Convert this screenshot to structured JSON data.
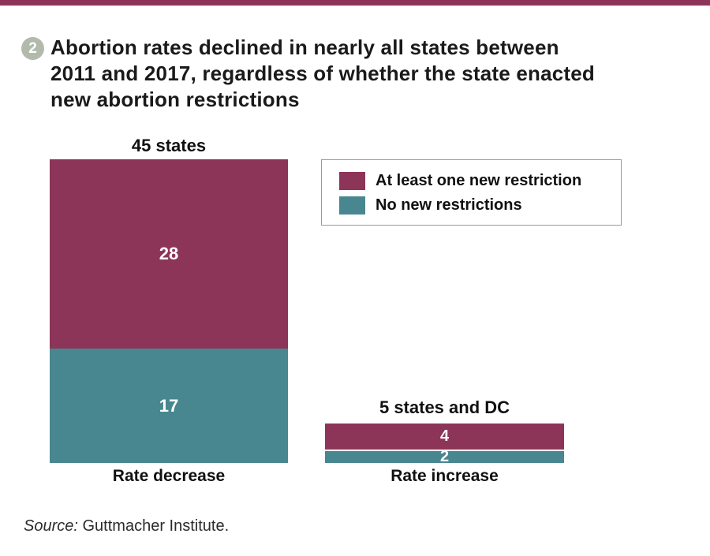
{
  "page": {
    "badge_number": "2",
    "title": "Abortion rates declined in nearly all states between\n2011 and 2017, regardless of whether the state enacted\nnew abortion restrictions",
    "source_prefix": "Source:",
    "source_text": " Guttmacher Institute."
  },
  "colors": {
    "restriction_maroon": "#8D3559",
    "no_restriction_teal": "#48878F",
    "badge_sage": "#B2BAAC",
    "top_rule": "#8D3559",
    "legend_border": "#9B9B9B",
    "text_dark": "#1A1A1A"
  },
  "legend": {
    "items": [
      {
        "label": "At least one new restriction",
        "color": "#8D3559"
      },
      {
        "label": "No new restrictions",
        "color": "#48878F"
      }
    ]
  },
  "chart_data": {
    "type": "bar",
    "stacked": true,
    "orientation": "vertical",
    "categories": [
      "Rate decrease",
      "Rate increase"
    ],
    "category_totals": [
      "45 states",
      "5 states and DC"
    ],
    "series": [
      {
        "name": "At least one new restriction",
        "color": "#8D3559",
        "values": [
          28,
          4
        ]
      },
      {
        "name": "No new restrictions",
        "color": "#48878F",
        "values": [
          17,
          2
        ]
      }
    ],
    "title": "Abortion rates declined in nearly all states between 2011 and 2017, regardless of whether the state enacted new abortion restrictions",
    "xlabel": "",
    "ylabel": "",
    "legend_position": "top-right",
    "grid": false,
    "value_labels_shown": true
  }
}
